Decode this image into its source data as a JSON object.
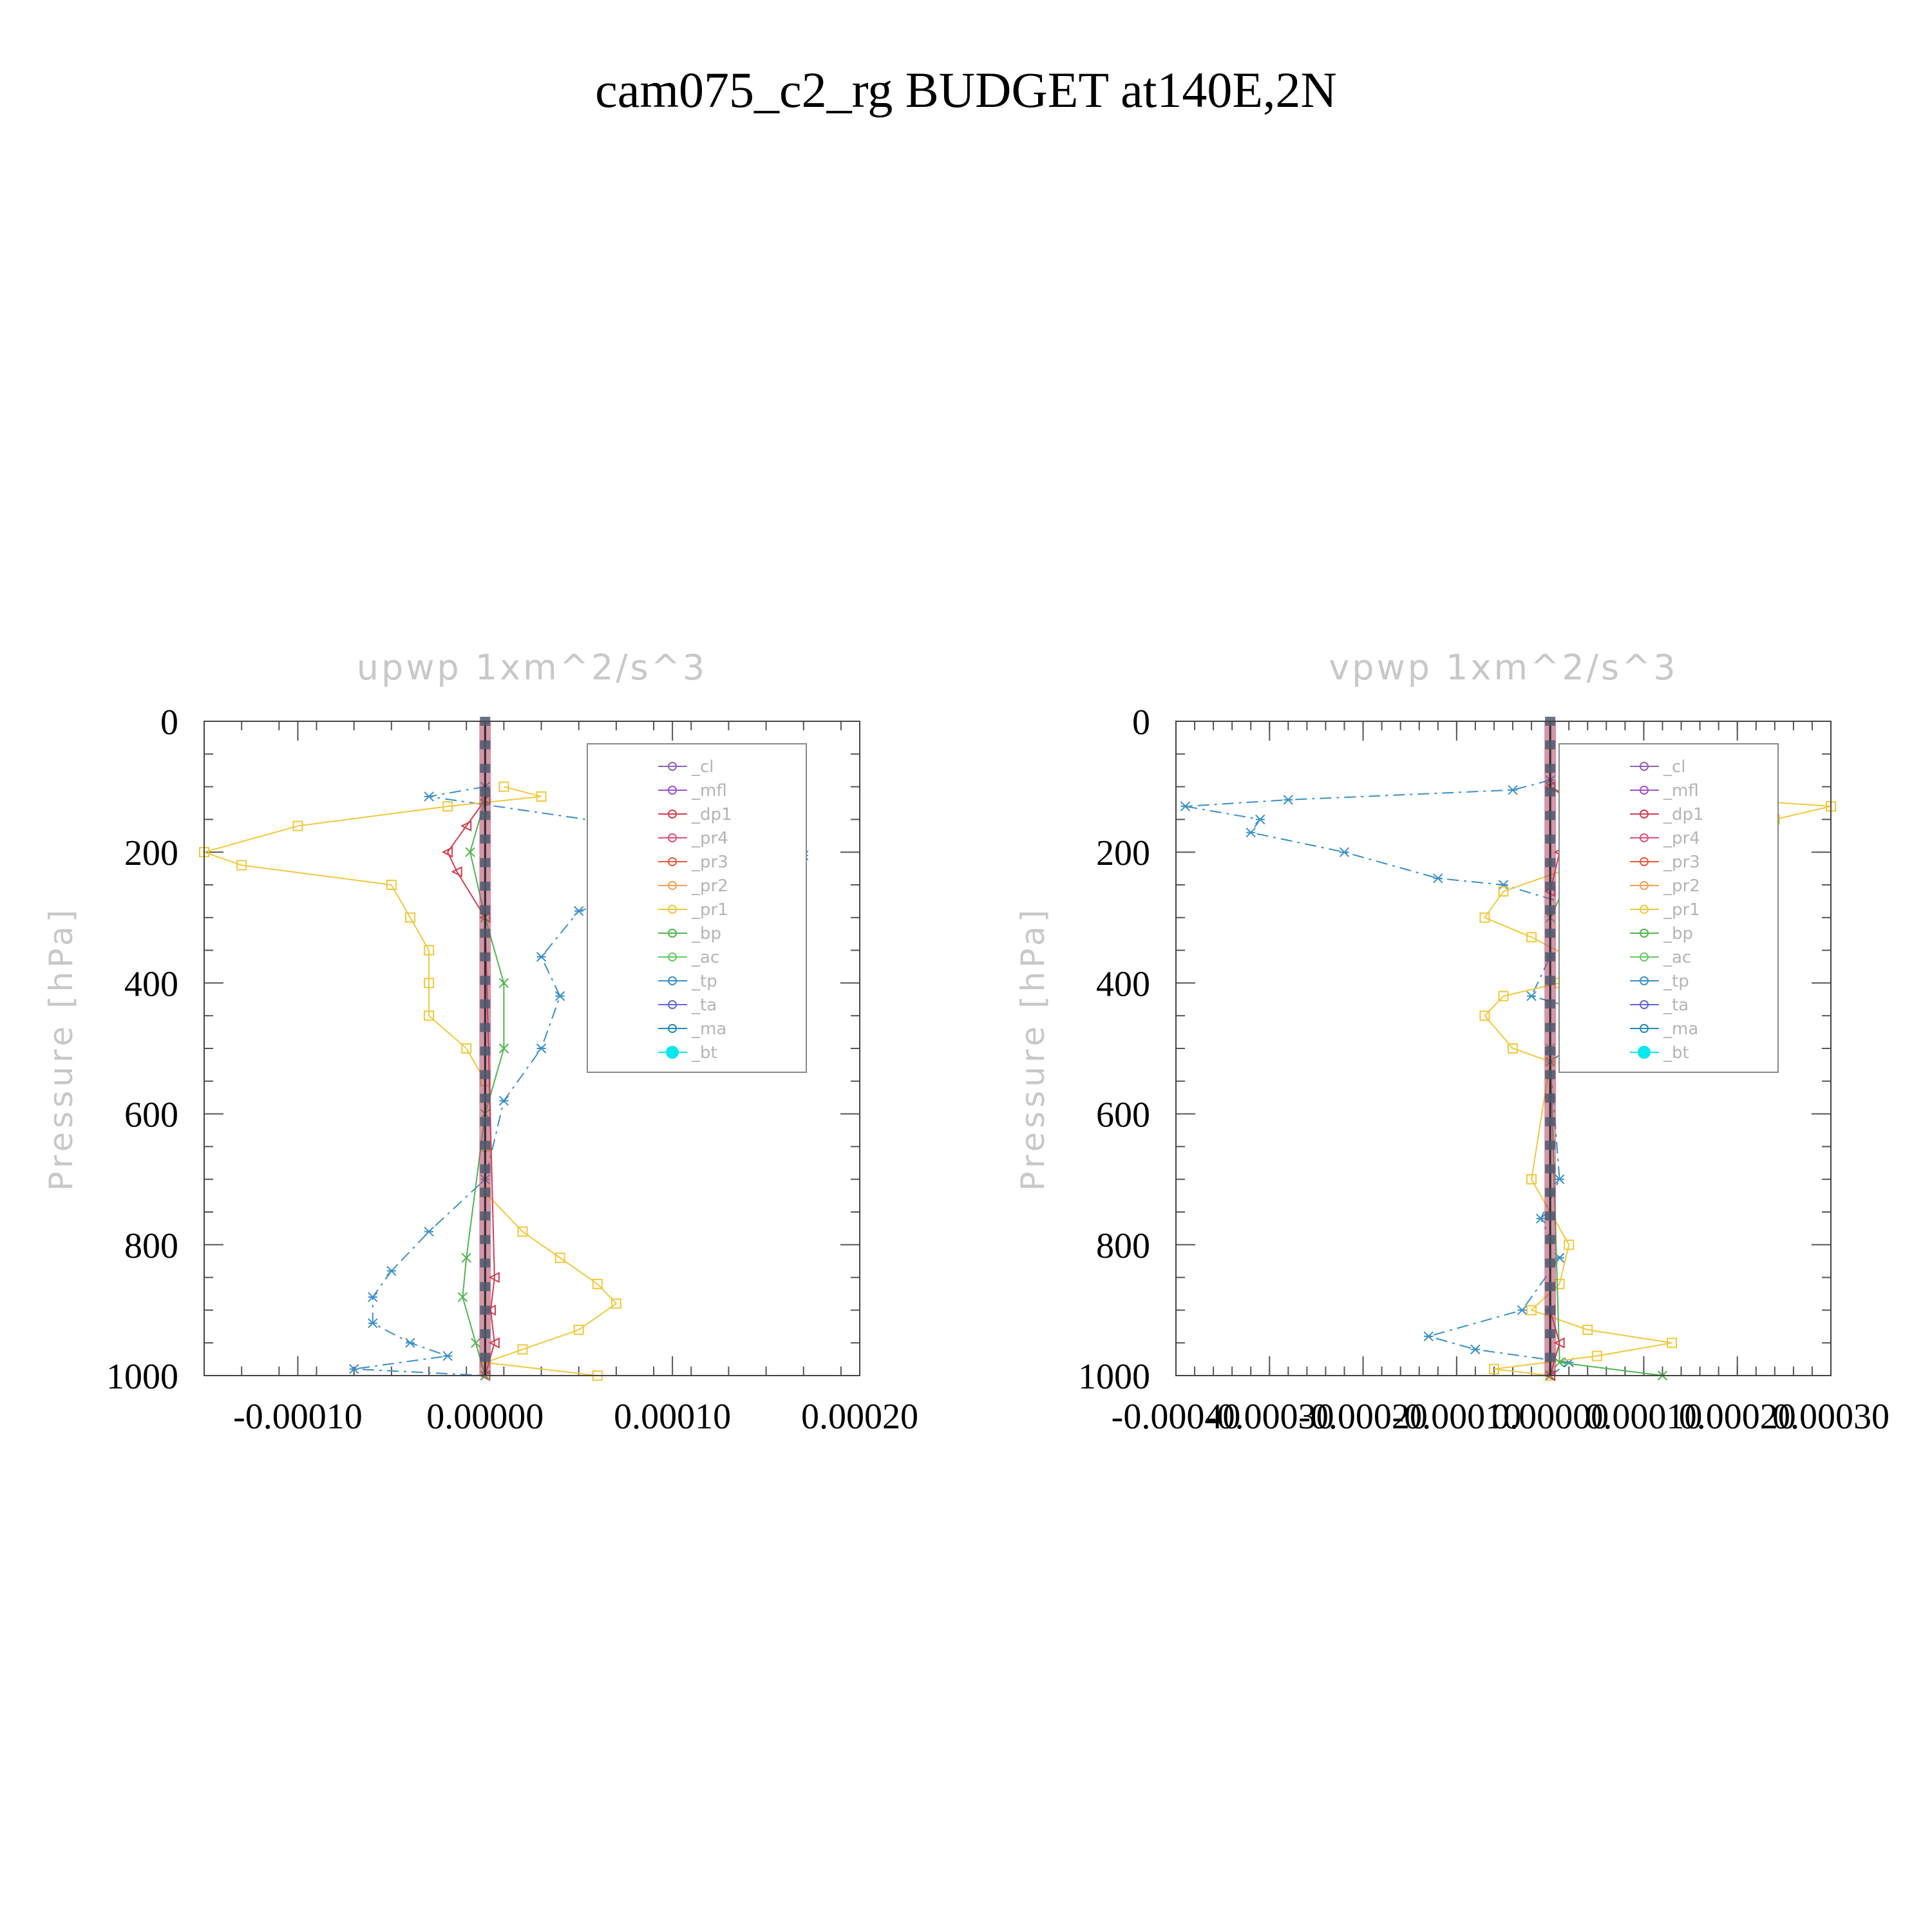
{
  "page_title": "cam075_c2_rg  BUDGET at140E,2N",
  "chart_data": [
    {
      "type": "line",
      "title": "upwp   1xm^2/s^3",
      "ylabel": "Pressure [hPa]",
      "xlabel": "",
      "y_inverted": true,
      "ylim": [
        0,
        1000
      ],
      "xlim": [
        -0.00015,
        0.0002
      ],
      "xticks": [
        "-0.00010",
        "0.00000",
        "0.00010",
        "0.00020"
      ],
      "xtick_values": [
        -0.0001,
        0,
        0.0001,
        0.0002
      ],
      "yticks": [
        "0",
        "200",
        "400",
        "600",
        "800",
        "1000"
      ],
      "ytick_values": [
        0,
        200,
        400,
        600,
        800,
        1000
      ],
      "legend": [
        "_cl",
        "_mfl",
        "_dp1",
        "_pr4",
        "_pr3",
        "_pr2",
        "_pr1",
        "_bp",
        "_ac",
        "_tp",
        "_ta",
        "_ma",
        "_bt"
      ],
      "legend_position": "top-right",
      "series": [
        {
          "name": "_tp",
          "color": "#3a8fc8",
          "marker": "star",
          "style": "dashdot",
          "x": [
            0,
            -3e-05,
            0.00015,
            0.00017,
            0.0001,
            5e-05,
            3e-05,
            4e-05,
            3e-05,
            1e-05,
            0,
            -3e-05,
            -5e-05,
            -6e-05,
            -6e-05,
            -4e-05,
            -2e-05,
            -7e-05,
            0
          ],
          "y": [
            100,
            115,
            190,
            205,
            250,
            290,
            360,
            420,
            500,
            580,
            700,
            780,
            840,
            880,
            920,
            950,
            970,
            990,
            1000
          ]
        },
        {
          "name": "_pr1",
          "color": "#f0c83c",
          "marker": "square",
          "style": "solid",
          "x": [
            1e-05,
            3e-05,
            -2e-05,
            -0.0001,
            -0.00015,
            -0.00013,
            -5e-05,
            -4e-05,
            -3e-05,
            -3e-05,
            -3e-05,
            -1e-05,
            0,
            0,
            0,
            2e-05,
            4e-05,
            6e-05,
            7e-05,
            5e-05,
            2e-05,
            0,
            6e-05
          ],
          "y": [
            100,
            115,
            130,
            160,
            200,
            220,
            250,
            300,
            350,
            400,
            450,
            500,
            550,
            650,
            720,
            780,
            820,
            860,
            890,
            930,
            960,
            980,
            1000
          ]
        },
        {
          "name": "_dp1",
          "color": "#d23c50",
          "marker": "triangle-left",
          "style": "solid",
          "x": [
            0,
            -1e-05,
            -2e-05,
            -1.5e-05,
            0,
            5e-06,
            3e-06,
            5e-06,
            0
          ],
          "y": [
            120,
            160,
            200,
            230,
            300,
            850,
            900,
            950,
            1000
          ]
        },
        {
          "name": "_bp",
          "color": "#50b450",
          "marker": "x",
          "style": "solid",
          "x": [
            0,
            -8e-06,
            0,
            1e-05,
            1e-05,
            0,
            -1e-05,
            -1.2e-05,
            -5e-06,
            0
          ],
          "y": [
            120,
            200,
            300,
            400,
            500,
            600,
            820,
            880,
            950,
            1000
          ]
        },
        {
          "name": "_bt",
          "color": "#00e8f0",
          "marker": "dot",
          "style": "solid",
          "x": [
            0,
            0,
            0,
            0,
            0,
            0,
            0,
            0,
            0,
            0,
            0
          ],
          "y": [
            0,
            100,
            200,
            300,
            400,
            500,
            600,
            700,
            800,
            900,
            1000
          ]
        }
      ]
    },
    {
      "type": "line",
      "title": "vpwp   1xm^2/s^3",
      "ylabel": "Pressure [hPa]",
      "xlabel": "",
      "y_inverted": true,
      "ylim": [
        0,
        1000
      ],
      "xlim": [
        -0.0004,
        0.0003
      ],
      "xticks": [
        "-0.00040",
        "-0.00030",
        "-0.00020",
        "-0.00010",
        "0.00000",
        "0.00010",
        "0.00020",
        "0.00030"
      ],
      "xtick_values": [
        -0.0004,
        -0.0003,
        -0.0002,
        -0.0001,
        0,
        0.0001,
        0.0002,
        0.0003
      ],
      "yticks": [
        "0",
        "200",
        "400",
        "600",
        "800",
        "1000"
      ],
      "ytick_values": [
        0,
        200,
        400,
        600,
        800,
        1000
      ],
      "legend": [
        "_cl",
        "_mfl",
        "_dp1",
        "_pr4",
        "_pr3",
        "_pr2",
        "_pr1",
        "_bp",
        "_ac",
        "_tp",
        "_ta",
        "_ma",
        "_bt"
      ],
      "legend_position": "top-right",
      "series": [
        {
          "name": "_tp",
          "color": "#3a8fc8",
          "marker": "star",
          "style": "dashdot",
          "x": [
            0,
            -4e-05,
            -0.00028,
            -0.00039,
            -0.00031,
            -0.00032,
            -0.00022,
            -0.00012,
            -5e-05,
            2e-05,
            5e-05,
            3e-05,
            0,
            -2e-05,
            3e-05,
            6e-05,
            0,
            1e-05,
            -1e-05,
            1e-05,
            -3e-05,
            -0.00013,
            -8e-05,
            2e-05,
            0
          ],
          "y": [
            90,
            105,
            120,
            130,
            150,
            170,
            200,
            240,
            250,
            280,
            300,
            330,
            360,
            420,
            440,
            460,
            520,
            700,
            760,
            820,
            900,
            940,
            960,
            980,
            1000
          ]
        },
        {
          "name": "_pr1",
          "color": "#f0c83c",
          "marker": "square",
          "style": "solid",
          "x": [
            2e-05,
            0.0001,
            0.0003,
            0.00024,
            0.0001,
            3e-05,
            -5e-05,
            -7e-05,
            -2e-05,
            2e-05,
            1e-05,
            -5e-05,
            -7e-05,
            -4e-05,
            0,
            -2e-05,
            2e-05,
            1e-05,
            -2e-05,
            4e-05,
            0.00013,
            5e-05,
            -6e-05,
            0
          ],
          "y": [
            100,
            110,
            130,
            150,
            180,
            220,
            260,
            300,
            330,
            360,
            400,
            420,
            450,
            500,
            520,
            700,
            800,
            860,
            900,
            930,
            950,
            970,
            990,
            1000
          ]
        },
        {
          "name": "_bp",
          "color": "#50b450",
          "marker": "x",
          "style": "solid",
          "x": [
            0,
            4e-05,
            6e-05,
            2e-05,
            0,
            0,
            1e-05,
            0.00012,
            0
          ],
          "y": [
            100,
            130,
            170,
            240,
            300,
            500,
            980,
            1000,
            1000
          ]
        },
        {
          "name": "_dp1",
          "color": "#d23c50",
          "marker": "triangle-left",
          "style": "solid",
          "x": [
            0,
            3e-05,
            2e-05,
            1e-05,
            0,
            0,
            1e-05,
            0
          ],
          "y": [
            100,
            130,
            160,
            200,
            260,
            900,
            950,
            1000
          ]
        },
        {
          "name": "_bt",
          "color": "#00e8f0",
          "marker": "dot",
          "style": "solid",
          "x": [
            0,
            0,
            0,
            0,
            0,
            0,
            0,
            0,
            0,
            0,
            0
          ],
          "y": [
            0,
            100,
            200,
            300,
            400,
            500,
            600,
            700,
            800,
            900,
            1000
          ]
        }
      ]
    }
  ],
  "colors": {
    "_cl": "#8c64b4",
    "_mfl": "#a050c8",
    "_dp1": "#d23c50",
    "_pr4": "#dc5078",
    "_pr3": "#e65a3c",
    "_pr2": "#f0a050",
    "_pr1": "#f0c83c",
    "_bp": "#50b450",
    "_ac": "#64c864",
    "_tp": "#3a8fc8",
    "_ta": "#6464dc",
    "_ma": "#1e8cb4",
    "_bt": "#00e8f0"
  }
}
